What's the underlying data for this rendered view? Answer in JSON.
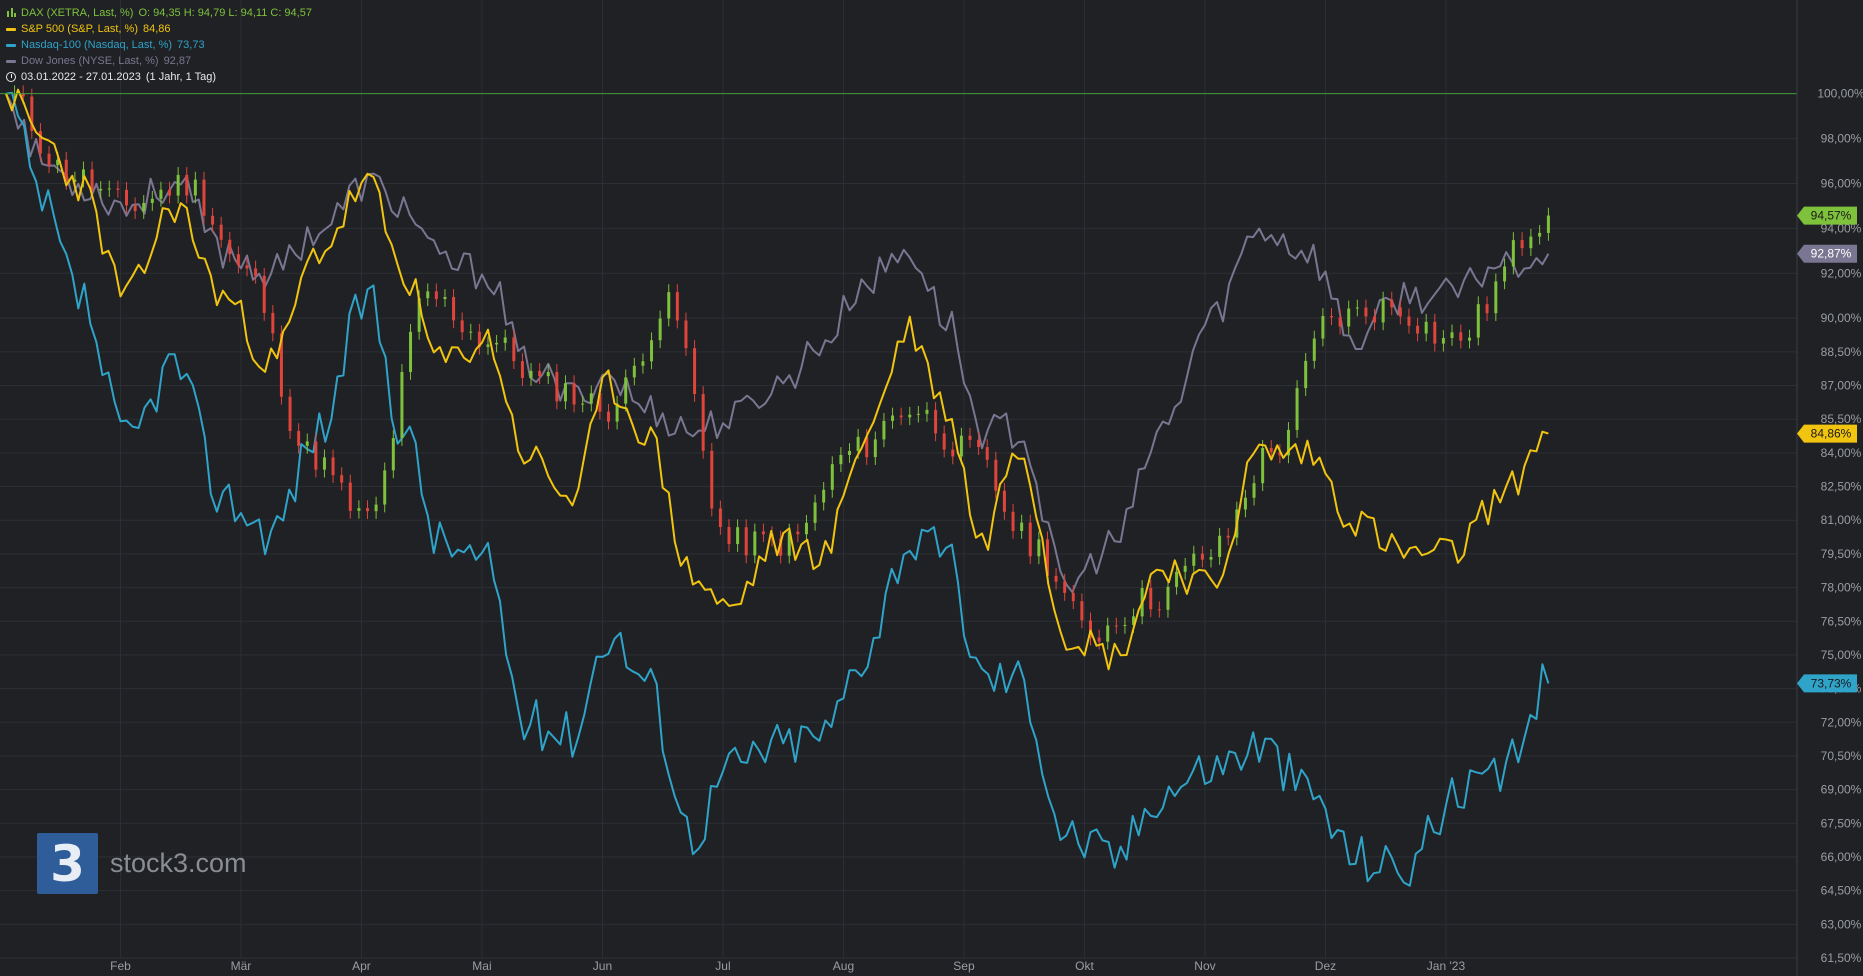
{
  "colors": {
    "background": "#1f2125",
    "grid": "#2c2f34",
    "baseline": "#3f9a3a",
    "dax_up": "#7ec13b",
    "dax_down": "#e0443a",
    "sp500": "#f1c40f",
    "nasdaq": "#2fa3c8",
    "dow": "#7a7591",
    "axis_text": "#9a9da3"
  },
  "legend": {
    "dax": {
      "label": "DAX (XETRA, Last, %)",
      "ohlc": "O: 94,35  H: 94,79  L: 94,11  C: 94,57"
    },
    "sp500": {
      "label": "S&P 500 (S&P, Last, %)",
      "value": "84,86"
    },
    "nasdaq": {
      "label": "Nasdaq-100 (Nasdaq, Last, %)",
      "value": "73,73"
    },
    "dow": {
      "label": "Dow Jones (NYSE, Last, %)",
      "value": "92,87"
    },
    "range": {
      "dates": "03.01.2022 - 27.01.2023",
      "interval": "(1 Jahr, 1 Tag)"
    }
  },
  "logo": {
    "mark": "3",
    "text": "stock3.com"
  },
  "icons": {
    "legend_candles": "candlestick-icon",
    "range_clock": "clock-icon",
    "logo": "stock3-logo-icon"
  },
  "chart_data": {
    "type": "line",
    "x_start": "03.01.2022",
    "x_end": "27.01.2023",
    "x_ticks": [
      "Feb",
      "Mär",
      "Apr",
      "Mai",
      "Jun",
      "Jul",
      "Aug",
      "Sep",
      "Okt",
      "Nov",
      "Dez",
      "Jan '23"
    ],
    "ylim": [
      61.5,
      101.5
    ],
    "y_ticks": [
      "100,00%",
      "98,00%",
      "96,00%",
      "94,00%",
      "92,00%",
      "90,00%",
      "88,50%",
      "87,00%",
      "85,50%",
      "84,00%",
      "82,50%",
      "81,00%",
      "79,50%",
      "78,00%",
      "76,50%",
      "75,00%",
      "73,50%",
      "72,00%",
      "70,50%",
      "69,00%",
      "67,50%",
      "66,00%",
      "64,50%",
      "63,00%",
      "61,50%"
    ],
    "baseline": 100.0,
    "last_value_labels": [
      {
        "series": "DAX",
        "text": "94,57%",
        "value": 94.57
      },
      {
        "series": "Dow Jones",
        "text": "92,87%",
        "value": 92.87
      },
      {
        "series": "S&P 500",
        "text": "84,86%",
        "value": 84.86
      },
      {
        "series": "Nasdaq-100",
        "text": "73,73%",
        "value": 73.73
      }
    ],
    "series": [
      {
        "name": "DAX",
        "style": "candlestick",
        "x_month": [
          0.0,
          0.5,
          1.0,
          1.5,
          2.0,
          2.5,
          3.0,
          3.5,
          4.0,
          4.5,
          5.0,
          5.5,
          6.0,
          6.5,
          7.0,
          7.5,
          8.0,
          8.5,
          9.0,
          9.5,
          10.0,
          10.5,
          11.0,
          11.5,
          12.0,
          12.8
        ],
        "values": [
          100.0,
          96.5,
          95.0,
          96.0,
          92.0,
          84.0,
          81.0,
          91.0,
          89.0,
          87.0,
          86.0,
          90.5,
          80.0,
          80.0,
          84.0,
          86.0,
          84.0,
          80.0,
          76.0,
          77.5,
          79.5,
          84.0,
          90.0,
          90.5,
          89.0,
          94.57
        ]
      },
      {
        "name": "S&P 500",
        "style": "line",
        "x_month": [
          0.0,
          0.3,
          0.6,
          1.0,
          1.4,
          1.8,
          2.2,
          2.6,
          3.0,
          3.3,
          3.6,
          4.0,
          4.3,
          4.7,
          5.0,
          5.3,
          5.7,
          6.0,
          6.4,
          6.8,
          7.1,
          7.5,
          7.8,
          8.1,
          8.4,
          8.8,
          9.2,
          9.6,
          10.0,
          10.4,
          10.8,
          11.2,
          11.6,
          12.0,
          12.4,
          12.8
        ],
        "values": [
          100.0,
          98.0,
          96.0,
          91.0,
          95.0,
          91.0,
          88.0,
          93.0,
          96.0,
          92.0,
          88.0,
          89.0,
          84.0,
          82.0,
          87.0,
          85.0,
          78.5,
          77.0,
          80.0,
          79.5,
          84.5,
          89.5,
          86.0,
          80.0,
          84.5,
          76.0,
          75.0,
          79.0,
          78.0,
          84.0,
          84.0,
          81.0,
          79.5,
          79.5,
          82.0,
          84.86
        ]
      },
      {
        "name": "Nasdaq-100",
        "style": "line",
        "x_month": [
          0.0,
          0.3,
          0.6,
          1.0,
          1.4,
          1.8,
          2.2,
          2.6,
          3.0,
          3.3,
          3.6,
          4.0,
          4.3,
          4.7,
          5.0,
          5.3,
          5.7,
          6.0,
          6.4,
          6.8,
          7.1,
          7.5,
          7.8,
          8.1,
          8.4,
          8.8,
          9.2,
          9.6,
          10.0,
          10.4,
          10.8,
          11.2,
          11.6,
          12.0,
          12.4,
          12.8
        ],
        "values": [
          100.0,
          95.0,
          91.0,
          84.5,
          88.0,
          82.0,
          80.5,
          85.0,
          91.0,
          85.0,
          80.0,
          79.0,
          72.0,
          71.5,
          76.0,
          74.0,
          67.0,
          70.0,
          71.0,
          71.5,
          75.0,
          80.0,
          79.5,
          74.0,
          74.0,
          67.0,
          66.0,
          69.0,
          70.0,
          71.0,
          69.0,
          66.0,
          65.5,
          68.5,
          69.5,
          73.73
        ]
      },
      {
        "name": "Dow Jones",
        "style": "line",
        "x_month": [
          0.0,
          0.3,
          0.6,
          1.0,
          1.4,
          1.8,
          2.2,
          2.6,
          3.0,
          3.3,
          3.6,
          4.0,
          4.3,
          4.7,
          5.0,
          5.3,
          5.7,
          6.0,
          6.4,
          6.8,
          7.1,
          7.5,
          7.8,
          8.1,
          8.4,
          8.8,
          9.2,
          9.6,
          10.0,
          10.4,
          10.8,
          11.2,
          11.6,
          12.0,
          12.4,
          12.8
        ],
        "values": [
          100.0,
          97.0,
          96.0,
          95.0,
          96.0,
          93.0,
          92.0,
          94.0,
          96.0,
          95.0,
          92.5,
          92.0,
          88.0,
          86.5,
          87.5,
          86.0,
          85.0,
          85.5,
          87.0,
          89.0,
          91.5,
          93.0,
          90.0,
          85.0,
          85.0,
          78.0,
          80.0,
          85.0,
          90.0,
          94.0,
          93.0,
          89.0,
          91.0,
          91.0,
          92.5,
          92.87
        ]
      }
    ]
  }
}
